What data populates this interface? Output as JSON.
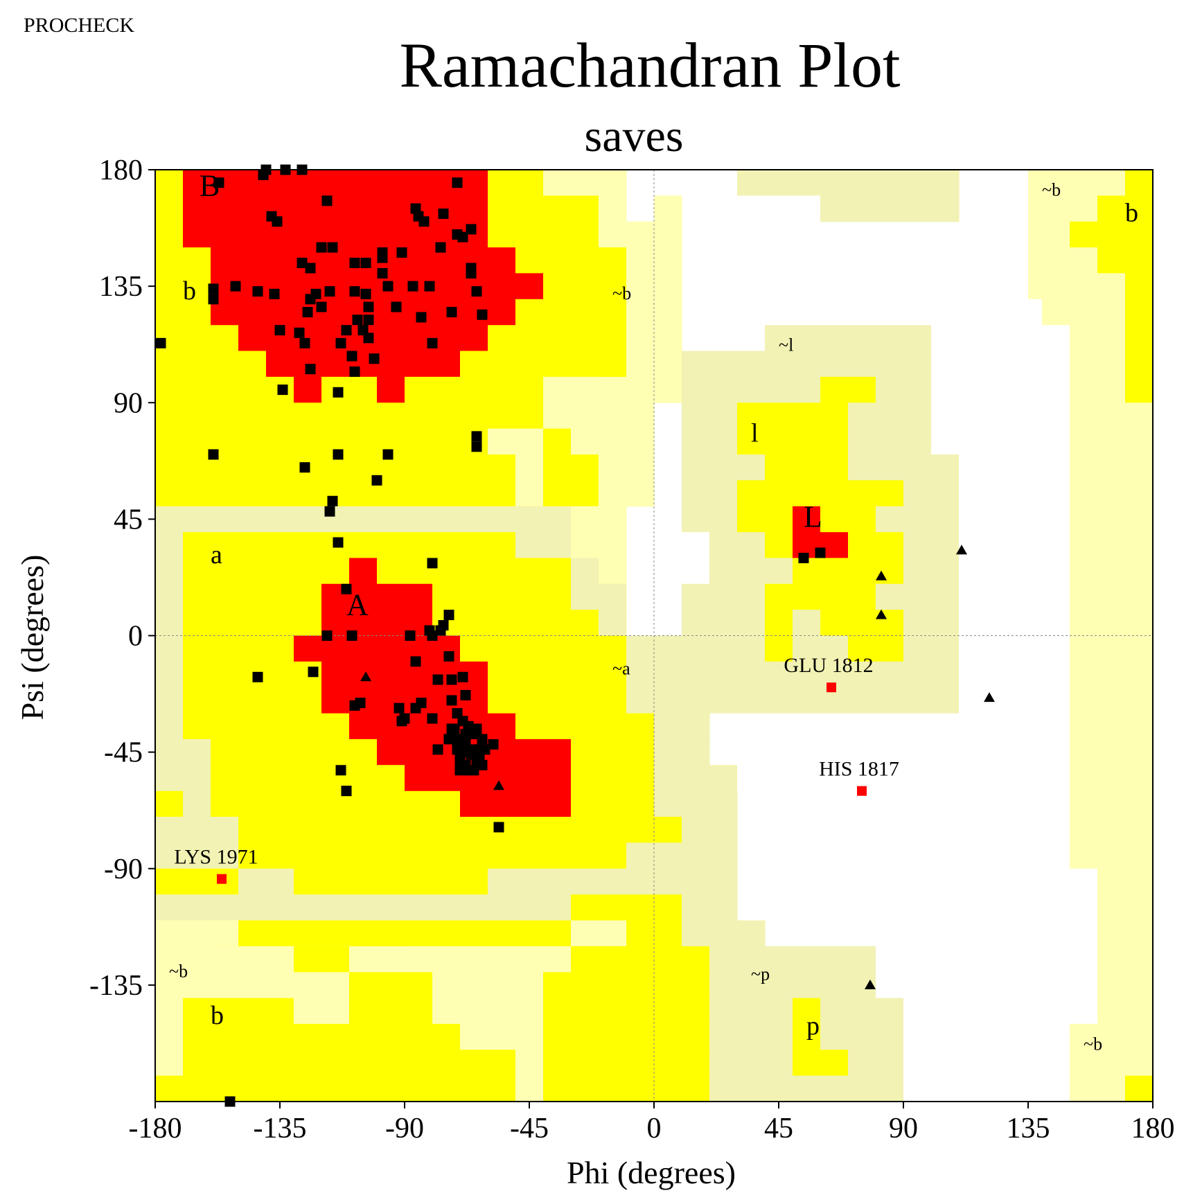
{
  "header": {
    "program": "PROCHECK"
  },
  "chart_data": {
    "type": "scatter",
    "title": "Ramachandran Plot",
    "subtitle": "saves",
    "xlabel": "Phi (degrees)",
    "ylabel": "Psi (degrees)",
    "xlim": [
      -180,
      180
    ],
    "ylim": [
      -180,
      180
    ],
    "xticks": [
      -180,
      -135,
      -90,
      -45,
      0,
      45,
      90,
      135,
      180
    ],
    "yticks": [
      -135,
      -90,
      -45,
      0,
      45,
      90,
      135,
      180
    ],
    "colors": {
      "core": "#ff0000",
      "allowed": "#ffff00",
      "generous": "#ffffb4",
      "generous_l": "#f2f2b4",
      "disallowed": "#ffffff",
      "point": "#000000",
      "outlier": "#ff0000"
    },
    "region_labels": [
      {
        "text": "B",
        "x": -164,
        "y": 170
      },
      {
        "text": "b",
        "x": -170,
        "y": 130
      },
      {
        "text": "a",
        "x": -160,
        "y": 28
      },
      {
        "text": "A",
        "x": -111,
        "y": 8
      },
      {
        "text": "~b",
        "x": -15,
        "y": 130
      },
      {
        "text": "~a",
        "x": -15,
        "y": -15
      },
      {
        "text": "~l",
        "x": 45,
        "y": 110
      },
      {
        "text": "l",
        "x": 35,
        "y": 75
      },
      {
        "text": "L",
        "x": 54,
        "y": 42
      },
      {
        "text": "~b",
        "x": 140,
        "y": 170
      },
      {
        "text": "b",
        "x": 170,
        "y": 160
      },
      {
        "text": "~b",
        "x": -175,
        "y": -132
      },
      {
        "text": "b",
        "x": -160,
        "y": -150
      },
      {
        "text": "~p",
        "x": 35,
        "y": -133
      },
      {
        "text": "p",
        "x": 55,
        "y": -154
      },
      {
        "text": "~b",
        "x": 155,
        "y": -160
      }
    ],
    "series": [
      {
        "name": "residues",
        "marker": "square",
        "points": [
          [
            -140,
            180
          ],
          [
            -133,
            180
          ],
          [
            -127,
            180
          ],
          [
            -157,
            175
          ],
          [
            -141,
            178
          ],
          [
            -118,
            168
          ],
          [
            -86,
            165
          ],
          [
            -71,
            175
          ],
          [
            -85,
            162
          ],
          [
            -76,
            163
          ],
          [
            -71,
            155
          ],
          [
            -69,
            154
          ],
          [
            -66,
            157
          ],
          [
            -83,
            160
          ],
          [
            -138,
            162
          ],
          [
            -136,
            160
          ],
          [
            -120,
            150
          ],
          [
            -116,
            150
          ],
          [
            -108,
            144
          ],
          [
            -104,
            144
          ],
          [
            -98,
            148
          ],
          [
            -98,
            146
          ],
          [
            -91,
            148
          ],
          [
            -77,
            150
          ],
          [
            -66,
            142
          ],
          [
            -66,
            140
          ],
          [
            -127,
            144
          ],
          [
            -124,
            142
          ],
          [
            -98,
            140
          ],
          [
            -143,
            133
          ],
          [
            -137,
            132
          ],
          [
            -122,
            132
          ],
          [
            -117,
            133
          ],
          [
            -108,
            133
          ],
          [
            -104,
            132
          ],
          [
            -96,
            135
          ],
          [
            -87,
            135
          ],
          [
            -81,
            135
          ],
          [
            -64,
            133
          ],
          [
            -151,
            135
          ],
          [
            -159,
            130
          ],
          [
            -159,
            134
          ],
          [
            -124,
            130
          ],
          [
            -125,
            125
          ],
          [
            -120,
            127
          ],
          [
            -103,
            127
          ],
          [
            -93,
            127
          ],
          [
            -84,
            123
          ],
          [
            -73,
            125
          ],
          [
            -62,
            124
          ],
          [
            -103,
            122
          ],
          [
            -107,
            122
          ],
          [
            -105,
            118
          ],
          [
            -135,
            118
          ],
          [
            -128,
            117
          ],
          [
            -111,
            118
          ],
          [
            -126,
            113
          ],
          [
            -113,
            113
          ],
          [
            -103,
            115
          ],
          [
            -109,
            108
          ],
          [
            -101,
            107
          ],
          [
            -108,
            102
          ],
          [
            -80,
            113
          ],
          [
            -124,
            103
          ],
          [
            -178,
            113
          ],
          [
            -134,
            95
          ],
          [
            -114,
            94
          ],
          [
            -159,
            70
          ],
          [
            -126,
            65
          ],
          [
            -114,
            70
          ],
          [
            -96,
            70
          ],
          [
            -100,
            60
          ],
          [
            -64,
            77
          ],
          [
            -64,
            73
          ],
          [
            -117,
            48
          ],
          [
            -116,
            52
          ],
          [
            -114,
            36
          ],
          [
            -80,
            28
          ],
          [
            -111,
            18
          ],
          [
            -118,
            0
          ],
          [
            -109,
            0
          ],
          [
            -88,
            0
          ],
          [
            -80,
            0
          ],
          [
            -76,
            4
          ],
          [
            -74,
            8
          ],
          [
            -77,
            2
          ],
          [
            -81,
            2
          ],
          [
            -86,
            -10
          ],
          [
            -74,
            -8
          ],
          [
            -108,
            -27
          ],
          [
            -106,
            -26
          ],
          [
            -92,
            -28
          ],
          [
            -90,
            -32
          ],
          [
            -91,
            -33
          ],
          [
            -123,
            -14
          ],
          [
            -143,
            -16
          ],
          [
            -78,
            -17
          ],
          [
            -73,
            -17
          ],
          [
            -69,
            -16
          ],
          [
            -68,
            -23
          ],
          [
            -73,
            -25
          ],
          [
            -71,
            -30
          ],
          [
            -84,
            -26
          ],
          [
            -86,
            -28
          ],
          [
            -80,
            -32
          ],
          [
            -67,
            -35
          ],
          [
            -69,
            -33
          ],
          [
            -68,
            -38
          ],
          [
            -74,
            -40
          ],
          [
            -73,
            -36
          ],
          [
            -68,
            -42
          ],
          [
            -65,
            -38
          ],
          [
            -62,
            -40
          ],
          [
            -71,
            -44
          ],
          [
            -66,
            -46
          ],
          [
            -64,
            -48
          ],
          [
            -61,
            -44
          ],
          [
            -62,
            -50
          ],
          [
            -70,
            -48
          ],
          [
            -68,
            -50
          ],
          [
            -78,
            -44
          ],
          [
            -71,
            -40
          ],
          [
            -70,
            -52
          ],
          [
            -67,
            -52
          ],
          [
            -65,
            -52
          ],
          [
            -63,
            -44
          ],
          [
            -64,
            -36
          ],
          [
            -58,
            -42
          ],
          [
            -66,
            -38
          ],
          [
            -72,
            -36
          ],
          [
            -66,
            -44
          ],
          [
            -63,
            -47
          ],
          [
            -69,
            -45
          ],
          [
            -113,
            -52
          ],
          [
            -111,
            -60
          ],
          [
            -56,
            -74
          ],
          [
            -153,
            -180
          ],
          [
            54,
            30
          ],
          [
            60,
            32
          ]
        ]
      },
      {
        "name": "glycine",
        "marker": "triangle",
        "points": [
          [
            -104,
            -16
          ],
          [
            -56,
            -58
          ],
          [
            111,
            33
          ],
          [
            82,
            23
          ],
          [
            82,
            8
          ],
          [
            121,
            -24
          ],
          [
            78,
            -135
          ]
        ]
      },
      {
        "name": "outliers",
        "marker": "square",
        "points": [
          [
            64,
            -20
          ],
          [
            75,
            -60
          ],
          [
            -156,
            -94
          ]
        ]
      }
    ],
    "annotations": [
      {
        "text": "GLU 1812",
        "x": 63,
        "y": -14
      },
      {
        "text": "HIS 1817",
        "x": 74,
        "y": -54
      },
      {
        "text": "LYS 1971",
        "x": -158,
        "y": -88
      }
    ]
  }
}
